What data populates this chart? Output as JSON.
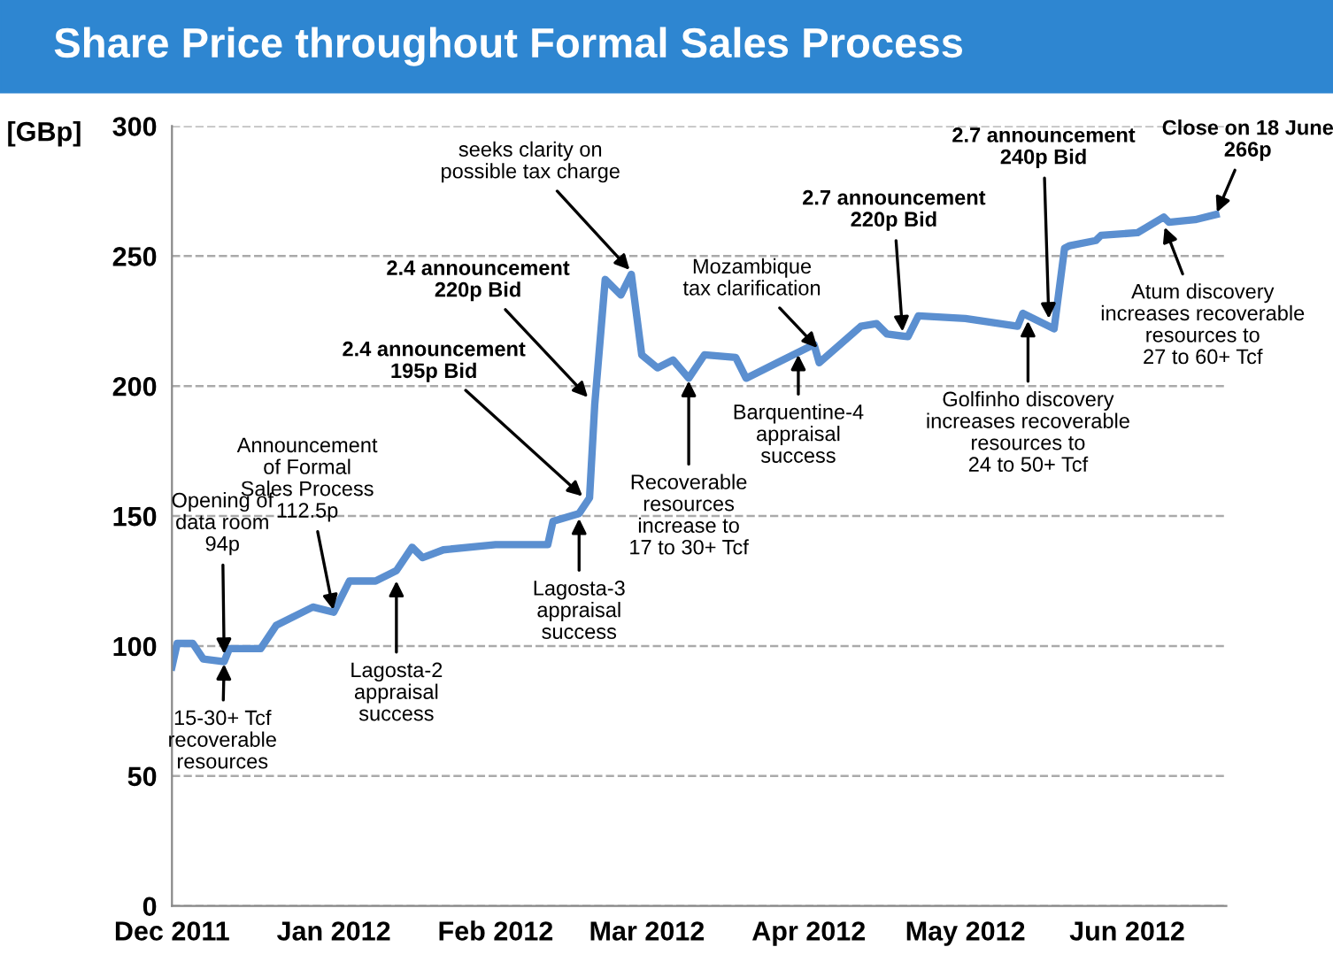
{
  "chart_data": {
    "type": "line",
    "title": "Share Price throughout Formal Sales Process",
    "ylabel": "[GBp]",
    "x": [
      "2011-12-01",
      "2011-12-02",
      "2011-12-05",
      "2011-12-07",
      "2011-12-11",
      "2011-12-12",
      "2011-12-18",
      "2011-12-21",
      "2011-12-28",
      "2012-01-01",
      "2012-01-04",
      "2012-01-09",
      "2012-01-13",
      "2012-01-16",
      "2012-01-18",
      "2012-01-22",
      "2012-02-01",
      "2012-02-11",
      "2012-02-12",
      "2012-02-17",
      "2012-02-19",
      "2012-02-20",
      "2012-02-22",
      "2012-02-25",
      "2012-02-27",
      "2012-02-29",
      "2012-03-03",
      "2012-03-06",
      "2012-03-09",
      "2012-03-12",
      "2012-03-18",
      "2012-03-20",
      "2012-03-26",
      "2012-04-02",
      "2012-04-03",
      "2012-04-11",
      "2012-04-14",
      "2012-04-16",
      "2012-04-20",
      "2012-04-22",
      "2012-05-01",
      "2012-05-11",
      "2012-05-12",
      "2012-05-18",
      "2012-05-20",
      "2012-05-21",
      "2012-05-26",
      "2012-05-27",
      "2012-06-03",
      "2012-06-08",
      "2012-06-09",
      "2012-06-14",
      "2012-06-18"
    ],
    "series": [
      {
        "color": "#5b8fd0",
        "values": [
          92,
          101,
          101,
          95,
          94,
          99,
          99,
          108,
          115,
          113,
          125,
          125,
          129,
          138,
          134,
          137,
          139,
          139,
          148,
          151,
          157,
          193,
          241,
          235,
          243,
          212,
          207,
          210,
          203,
          212,
          211,
          203,
          209,
          216,
          209,
          223,
          224,
          220,
          219,
          227,
          226,
          223,
          228,
          222,
          253,
          254,
          256,
          258,
          259,
          265,
          263,
          264,
          266
        ]
      }
    ],
    "xlim": [
      "2011-12-01",
      "2012-06-20"
    ],
    "xticks": [
      {
        "value": "2011-12-01",
        "label": "Dec 2011"
      },
      {
        "value": "2012-01-01",
        "label": "Jan 2012"
      },
      {
        "value": "2012-02-01",
        "label": "Feb 2012"
      },
      {
        "value": "2012-03-01",
        "label": "Mar 2012"
      },
      {
        "value": "2012-04-01",
        "label": "Apr 2012"
      },
      {
        "value": "2012-05-01",
        "label": "May 2012"
      },
      {
        "value": "2012-06-01",
        "label": "Jun 2012"
      }
    ],
    "ylim": [
      0,
      300
    ],
    "yticks": [
      0,
      50,
      100,
      150,
      200,
      250,
      300
    ],
    "grid": "y",
    "legend": false,
    "annotations": [
      {
        "text": "Opening of\ndata room\n94p",
        "x": "2011-12-11",
        "y": 96
      },
      {
        "text": "15-30+ Tcf\nrecoverable\nresources",
        "x": "2011-12-11",
        "y": 94
      },
      {
        "text": "Announcement\nof Formal\nSales Process\n112.5p",
        "x": "2012-01-01",
        "y": 113
      },
      {
        "text": "Lagosta-2\nappraisal\nsuccess",
        "x": "2012-01-13",
        "y": 126
      },
      {
        "text": "2.4 announcement\n195p Bid",
        "x": "2012-02-18",
        "y": 157
      },
      {
        "text": "2.4 announcement\n220p Bid",
        "x": "2012-02-19",
        "y": 195
      },
      {
        "text": "seeks clarity on\npossible tax charge",
        "x": "2012-02-27",
        "y": 244
      },
      {
        "text": "Lagosta-3\nappraisal\nsuccess",
        "x": "2012-02-17",
        "y": 150
      },
      {
        "text": "Recoverable\nresources\nincrease to\n17 to 30+ Tcf",
        "x": "2012-03-09",
        "y": 203
      },
      {
        "text": "Mozambique\ntax clarification",
        "x": "2012-04-03",
        "y": 214
      },
      {
        "text": "Barquentine-4\nappraisal\nsuccess",
        "x": "2012-03-30",
        "y": 213
      },
      {
        "text": "2.7 announcement\n220p Bid",
        "x": "2012-04-19",
        "y": 220
      },
      {
        "text": "2.7 announcement\n240p Bid",
        "x": "2012-05-17",
        "y": 225
      },
      {
        "text": "Golfinho discovery\nincreases recoverable\nresources to\n24 to 50+ Tcf",
        "x": "2012-05-13",
        "y": 226
      },
      {
        "text": "Atum discovery\nincreases recoverable\nresources to\n27 to 60+ Tcf",
        "x": "2012-06-08",
        "y": 262
      },
      {
        "text": "Close on 18 June\n266p",
        "x": "2012-06-18",
        "y": 266
      }
    ]
  }
}
